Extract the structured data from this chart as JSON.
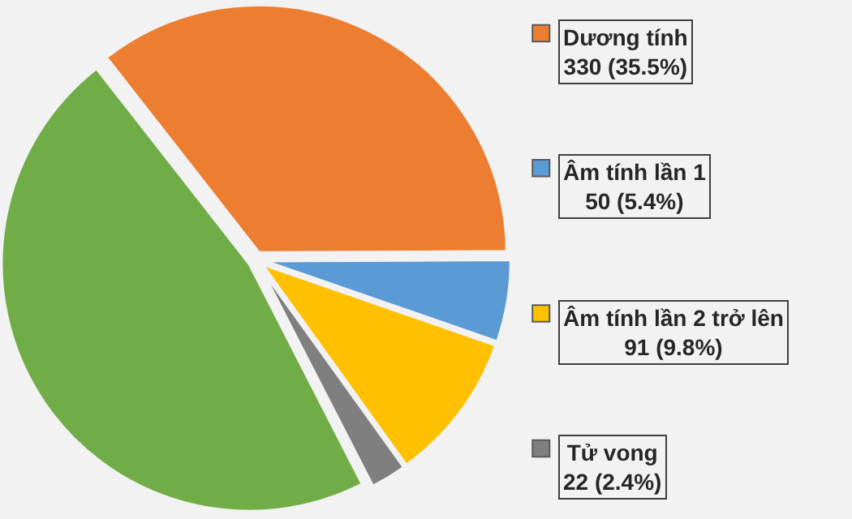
{
  "chart_data": {
    "type": "pie",
    "categories": [
      "Dương tính",
      "Âm tính lần 1",
      "Âm tính lần 2 trở lên",
      "Tử vong",
      null
    ],
    "values": [
      330,
      50,
      91,
      22,
      437
    ],
    "colors": [
      "#ed7d31",
      "#5b9bd5",
      "#ffc000",
      "#7f7f7f",
      "#70ad47"
    ],
    "value_labels": [
      "330 (35.5%)",
      "50 (5.4%)",
      "91 (9.8%)",
      "22 (2.4%)",
      null
    ],
    "legend": "right"
  }
}
